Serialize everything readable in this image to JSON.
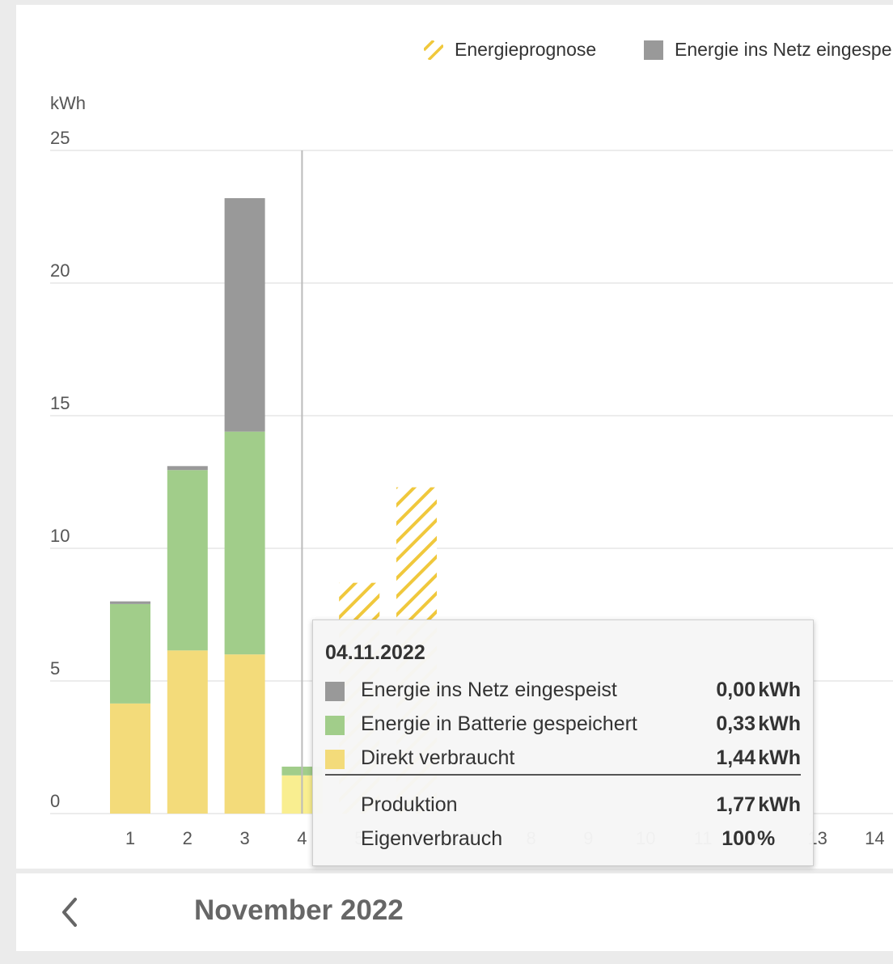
{
  "legend": [
    {
      "label": "Energieprognose",
      "swatch": "hatched",
      "color": "#f0c83c"
    },
    {
      "label": "Energie ins Netz eingespeist",
      "swatch": "solid",
      "color": "#999999"
    }
  ],
  "colors": {
    "netz": "#999999",
    "batterie": "#a1cd8a",
    "direkt": "#f3db7a",
    "direkt_selected": "#f9ee90",
    "prognose": "#f0c83c",
    "grid": "#e6e6e6",
    "crosshair": "#bbbbbb"
  },
  "chart_data": {
    "type": "bar",
    "stacked": true,
    "unit_label": "kWh",
    "ylim": [
      0,
      25
    ],
    "yticks": [
      0,
      5,
      10,
      15,
      20,
      25
    ],
    "categories": [
      "1",
      "2",
      "3",
      "4",
      "5",
      "6",
      "7",
      "8",
      "9",
      "10",
      "11",
      "12",
      "13",
      "14"
    ],
    "series": [
      {
        "name": "Direkt verbraucht",
        "values": [
          4.15,
          6.15,
          6.0,
          1.44,
          null,
          null,
          null,
          null,
          null,
          null,
          null,
          null,
          null,
          null
        ]
      },
      {
        "name": "Energie in Batterie gespeichert",
        "values": [
          3.75,
          6.8,
          8.4,
          0.33,
          null,
          null,
          null,
          null,
          null,
          null,
          null,
          null,
          null,
          null
        ]
      },
      {
        "name": "Energie ins Netz eingespeist",
        "values": [
          0.1,
          0.15,
          8.8,
          0.0,
          null,
          null,
          null,
          null,
          null,
          null,
          null,
          null,
          null,
          null
        ]
      },
      {
        "name": "Energieprognose",
        "values": [
          null,
          null,
          null,
          null,
          8.7,
          12.3,
          null,
          null,
          null,
          null,
          null,
          null,
          null,
          null
        ]
      }
    ],
    "selected_category": "4",
    "grid": true,
    "legend_position": "top-right"
  },
  "tooltip": {
    "date": "04.11.2022",
    "rows": [
      {
        "label": "Energie ins Netz eingespeist",
        "value": "0,00",
        "unit": "kWh",
        "color": "#999999"
      },
      {
        "label": "Energie in Batterie gespeichert",
        "value": "0,33",
        "unit": "kWh",
        "color": "#a1cd8a"
      },
      {
        "label": "Direkt verbraucht",
        "value": "1,44",
        "unit": "kWh",
        "color": "#f3db7a"
      }
    ],
    "summary": [
      {
        "label": "Produktion",
        "value": "1,77",
        "unit": "kWh"
      },
      {
        "label": "Eigenverbrauch",
        "value": "100",
        "unit": "%"
      }
    ]
  },
  "footer": {
    "month": "November 2022",
    "back_icon": "chevron-left-icon"
  }
}
